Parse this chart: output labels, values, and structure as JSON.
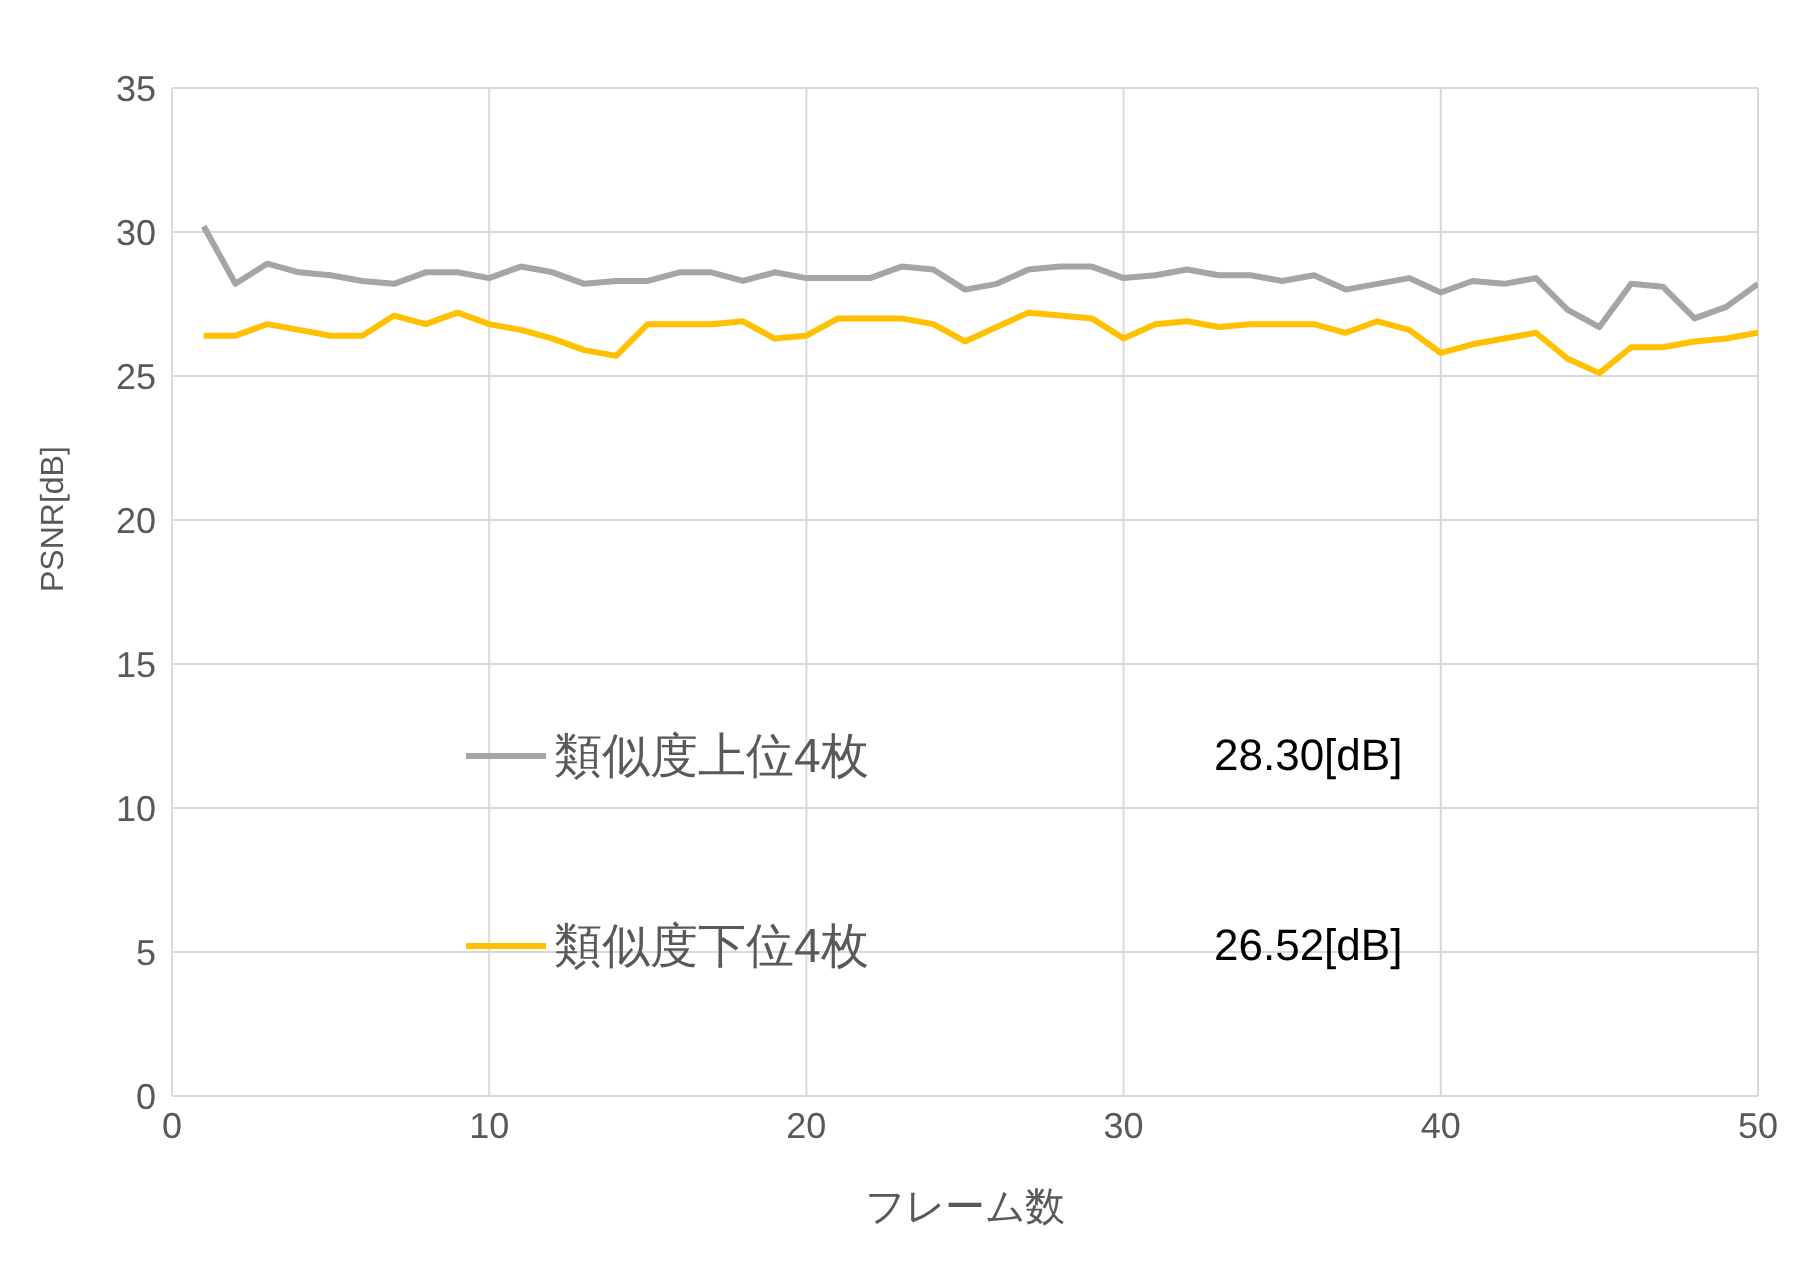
{
  "chart_data": {
    "type": "line",
    "xlabel": "フレーム数",
    "ylabel": "PSNR[dB]",
    "x": [
      1,
      2,
      3,
      4,
      5,
      6,
      7,
      8,
      9,
      10,
      11,
      12,
      13,
      14,
      15,
      16,
      17,
      18,
      19,
      20,
      21,
      22,
      23,
      24,
      25,
      26,
      27,
      28,
      29,
      30,
      31,
      32,
      33,
      34,
      35,
      36,
      37,
      38,
      39,
      40,
      41,
      42,
      43,
      44,
      45,
      46,
      47,
      48,
      49,
      50
    ],
    "series": [
      {
        "name": "類似度上位4枚",
        "color": "#a5a5a5",
        "values": [
          30.2,
          28.2,
          28.9,
          28.6,
          28.5,
          28.3,
          28.2,
          28.6,
          28.6,
          28.4,
          28.8,
          28.6,
          28.2,
          28.3,
          28.3,
          28.6,
          28.6,
          28.3,
          28.6,
          28.4,
          28.4,
          28.4,
          28.8,
          28.7,
          28.0,
          28.2,
          28.7,
          28.8,
          28.8,
          28.4,
          28.5,
          28.7,
          28.5,
          28.5,
          28.3,
          28.5,
          28.0,
          28.2,
          28.4,
          27.9,
          28.3,
          28.2,
          28.4,
          27.3,
          26.7,
          28.2,
          28.1,
          27.0,
          27.4,
          28.2
        ]
      },
      {
        "name": "類似度下位4枚",
        "color": "#ffc000",
        "values": [
          26.4,
          26.4,
          26.8,
          26.6,
          26.4,
          26.4,
          27.1,
          26.8,
          27.2,
          26.8,
          26.6,
          26.3,
          25.9,
          25.7,
          26.8,
          26.8,
          26.8,
          26.9,
          26.3,
          26.4,
          27.0,
          27.0,
          27.0,
          26.8,
          26.2,
          26.7,
          27.2,
          27.1,
          27.0,
          26.3,
          26.8,
          26.9,
          26.7,
          26.8,
          26.8,
          26.8,
          26.5,
          26.9,
          26.6,
          25.8,
          26.1,
          26.3,
          26.5,
          25.6,
          25.1,
          26.0,
          26.0,
          26.2,
          26.3,
          26.5
        ]
      }
    ],
    "xlim": [
      0,
      50
    ],
    "xticks": [
      0,
      10,
      20,
      30,
      40,
      50
    ],
    "ylim": [
      0,
      35
    ],
    "yticks": [
      0,
      5,
      10,
      15,
      20,
      25,
      30,
      35
    ],
    "grid": true,
    "legend": "left",
    "marker": "none",
    "line_style": "solid",
    "annotations": [
      "28.30[dB]",
      "26.52[dB]"
    ]
  }
}
